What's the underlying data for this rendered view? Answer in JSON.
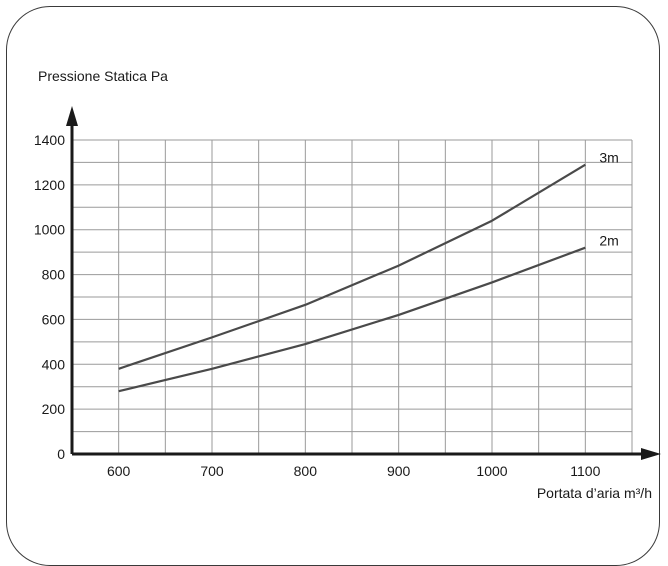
{
  "chart_data": {
    "type": "line",
    "ylabel": "Pressione Statica Pa",
    "xlabel": "Portata d’aria m³/h",
    "x_ticks": [
      "600",
      "700",
      "800",
      "900",
      "1000",
      "1100"
    ],
    "y_ticks": [
      "0",
      "200",
      "400",
      "600",
      "800",
      "1000",
      "1200",
      "1400"
    ],
    "xlim": [
      550,
      1150
    ],
    "ylim": [
      0,
      1400
    ],
    "grid": true,
    "series": [
      {
        "name": "3m",
        "x": [
          600,
          700,
          800,
          900,
          1000,
          1100
        ],
        "values": [
          380,
          520,
          665,
          840,
          1040,
          1290
        ]
      },
      {
        "name": "2m",
        "x": [
          600,
          700,
          800,
          900,
          1000,
          1100
        ],
        "values": [
          280,
          380,
          490,
          620,
          765,
          920
        ]
      }
    ],
    "colors": {
      "line": "#4a4a4a",
      "grid": "#9a9a9a",
      "axis": "#1a1a1a"
    }
  }
}
